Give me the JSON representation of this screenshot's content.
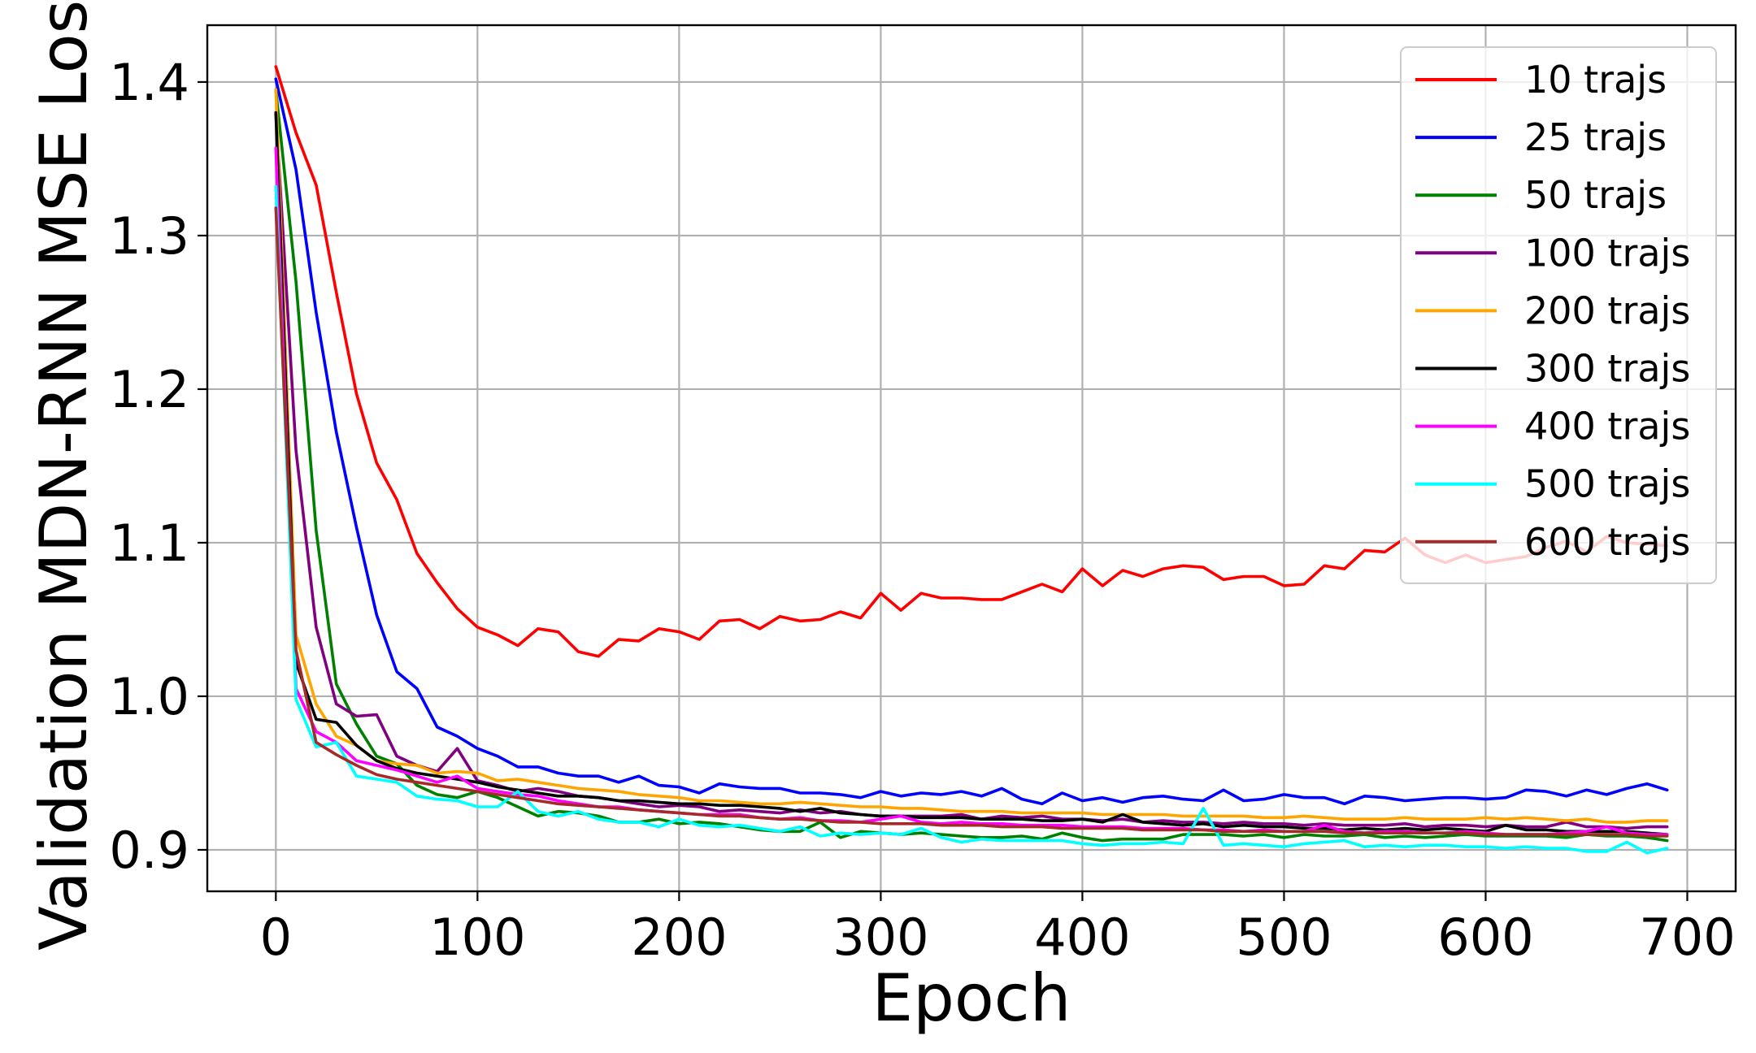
{
  "chart_data": {
    "type": "line",
    "title": "",
    "xlabel": "Epoch",
    "ylabel": "Validation MDN-RNN MSE Loss",
    "xlim": [
      -34,
      724
    ],
    "ylim": [
      0.873,
      1.437
    ],
    "xticks": [
      0,
      100,
      200,
      300,
      400,
      500,
      600,
      700
    ],
    "yticks": [
      0.9,
      1.0,
      1.1,
      1.2,
      1.3,
      1.4
    ],
    "xtick_labels": [
      "0",
      "100",
      "200",
      "300",
      "400",
      "500",
      "600",
      "700"
    ],
    "ytick_labels": [
      "0.9",
      "1.0",
      "1.1",
      "1.2",
      "1.3",
      "1.4"
    ],
    "grid": true,
    "legend_position": "top-right",
    "x": [
      0,
      10,
      20,
      30,
      40,
      50,
      60,
      70,
      80,
      90,
      100,
      110,
      120,
      130,
      140,
      150,
      160,
      170,
      180,
      190,
      200,
      210,
      220,
      230,
      240,
      250,
      260,
      270,
      280,
      290,
      300,
      310,
      320,
      330,
      340,
      350,
      360,
      370,
      380,
      390,
      400,
      410,
      420,
      430,
      440,
      450,
      460,
      470,
      480,
      490,
      500,
      510,
      520,
      530,
      540,
      550,
      560,
      570,
      580,
      590,
      600,
      610,
      620,
      630,
      640,
      650,
      660,
      670,
      680,
      690
    ],
    "series": [
      {
        "name": "10 trajs",
        "color": "#ff0000",
        "values": [
          1.41,
          1.367,
          1.333,
          1.263,
          1.197,
          1.152,
          1.128,
          1.093,
          1.074,
          1.057,
          1.045,
          1.04,
          1.033,
          1.044,
          1.042,
          1.029,
          1.026,
          1.037,
          1.036,
          1.044,
          1.042,
          1.037,
          1.049,
          1.05,
          1.044,
          1.052,
          1.049,
          1.05,
          1.055,
          1.051,
          1.067,
          1.056,
          1.067,
          1.064,
          1.064,
          1.063,
          1.063,
          1.068,
          1.073,
          1.068,
          1.083,
          1.072,
          1.082,
          1.078,
          1.083,
          1.085,
          1.084,
          1.076,
          1.078,
          1.078,
          1.072,
          1.073,
          1.085,
          1.083,
          1.095,
          1.094,
          1.103,
          1.092,
          1.087,
          1.092,
          1.087,
          1.089,
          1.091,
          1.097,
          1.101,
          1.094,
          1.104,
          1.1,
          1.099,
          1.098
        ]
      },
      {
        "name": "25 trajs",
        "color": "#0000ff",
        "values": [
          1.402,
          1.343,
          1.25,
          1.172,
          1.11,
          1.053,
          1.016,
          1.005,
          0.98,
          0.974,
          0.966,
          0.961,
          0.954,
          0.954,
          0.95,
          0.948,
          0.948,
          0.944,
          0.948,
          0.942,
          0.941,
          0.937,
          0.943,
          0.941,
          0.94,
          0.94,
          0.937,
          0.937,
          0.936,
          0.934,
          0.938,
          0.935,
          0.937,
          0.936,
          0.938,
          0.935,
          0.94,
          0.933,
          0.93,
          0.937,
          0.932,
          0.934,
          0.931,
          0.934,
          0.935,
          0.933,
          0.932,
          0.939,
          0.932,
          0.933,
          0.936,
          0.934,
          0.934,
          0.93,
          0.935,
          0.934,
          0.932,
          0.933,
          0.934,
          0.934,
          0.933,
          0.934,
          0.939,
          0.938,
          0.935,
          0.939,
          0.936,
          0.94,
          0.943,
          0.939
        ]
      },
      {
        "name": "50 trajs",
        "color": "#008000",
        "values": [
          1.395,
          1.27,
          1.108,
          1.008,
          0.982,
          0.961,
          0.956,
          0.942,
          0.936,
          0.934,
          0.938,
          0.934,
          0.928,
          0.922,
          0.925,
          0.924,
          0.922,
          0.918,
          0.918,
          0.92,
          0.917,
          0.918,
          0.917,
          0.915,
          0.913,
          0.912,
          0.912,
          0.918,
          0.908,
          0.912,
          0.911,
          0.91,
          0.911,
          0.91,
          0.909,
          0.908,
          0.908,
          0.909,
          0.907,
          0.911,
          0.908,
          0.906,
          0.907,
          0.907,
          0.907,
          0.91,
          0.91,
          0.91,
          0.909,
          0.91,
          0.908,
          0.91,
          0.909,
          0.909,
          0.91,
          0.908,
          0.909,
          0.908,
          0.909,
          0.91,
          0.909,
          0.909,
          0.909,
          0.909,
          0.908,
          0.91,
          0.909,
          0.909,
          0.908,
          0.906
        ]
      },
      {
        "name": "100 trajs",
        "color": "#800080",
        "values": [
          1.38,
          1.16,
          1.045,
          0.995,
          0.987,
          0.988,
          0.961,
          0.955,
          0.951,
          0.966,
          0.945,
          0.942,
          0.938,
          0.94,
          0.938,
          0.935,
          0.934,
          0.932,
          0.93,
          0.928,
          0.929,
          0.928,
          0.925,
          0.926,
          0.925,
          0.924,
          0.926,
          0.924,
          0.925,
          0.923,
          0.922,
          0.922,
          0.922,
          0.922,
          0.923,
          0.92,
          0.922,
          0.921,
          0.922,
          0.92,
          0.92,
          0.919,
          0.92,
          0.918,
          0.919,
          0.918,
          0.918,
          0.917,
          0.918,
          0.917,
          0.917,
          0.916,
          0.917,
          0.916,
          0.916,
          0.916,
          0.917,
          0.915,
          0.916,
          0.916,
          0.915,
          0.916,
          0.915,
          0.915,
          0.918,
          0.915,
          0.915,
          0.914,
          0.915,
          0.915
        ]
      },
      {
        "name": "200 trajs",
        "color": "#ffa500",
        "values": [
          1.395,
          1.04,
          0.995,
          0.974,
          0.968,
          0.958,
          0.956,
          0.955,
          0.95,
          0.951,
          0.95,
          0.945,
          0.946,
          0.944,
          0.942,
          0.94,
          0.939,
          0.938,
          0.936,
          0.935,
          0.934,
          0.932,
          0.932,
          0.931,
          0.93,
          0.93,
          0.931,
          0.93,
          0.929,
          0.928,
          0.928,
          0.927,
          0.927,
          0.926,
          0.925,
          0.925,
          0.925,
          0.924,
          0.924,
          0.924,
          0.924,
          0.923,
          0.923,
          0.923,
          0.923,
          0.922,
          0.922,
          0.922,
          0.922,
          0.921,
          0.921,
          0.922,
          0.921,
          0.92,
          0.92,
          0.92,
          0.921,
          0.92,
          0.92,
          0.92,
          0.921,
          0.92,
          0.921,
          0.92,
          0.919,
          0.92,
          0.918,
          0.918,
          0.919,
          0.919
        ]
      },
      {
        "name": "300 trajs",
        "color": "#000000",
        "values": [
          1.38,
          1.022,
          0.985,
          0.983,
          0.968,
          0.958,
          0.953,
          0.95,
          0.948,
          0.946,
          0.944,
          0.941,
          0.939,
          0.937,
          0.935,
          0.935,
          0.934,
          0.932,
          0.932,
          0.931,
          0.93,
          0.93,
          0.929,
          0.929,
          0.928,
          0.927,
          0.925,
          0.927,
          0.924,
          0.923,
          0.922,
          0.922,
          0.921,
          0.921,
          0.921,
          0.92,
          0.92,
          0.92,
          0.919,
          0.919,
          0.92,
          0.918,
          0.923,
          0.918,
          0.917,
          0.916,
          0.917,
          0.915,
          0.916,
          0.915,
          0.915,
          0.914,
          0.914,
          0.913,
          0.914,
          0.913,
          0.914,
          0.913,
          0.914,
          0.913,
          0.912,
          0.916,
          0.913,
          0.913,
          0.912,
          0.912,
          0.912,
          0.912,
          0.911,
          0.91
        ]
      },
      {
        "name": "400 trajs",
        "color": "#ff00ff",
        "values": [
          1.357,
          1.005,
          0.977,
          0.97,
          0.958,
          0.955,
          0.952,
          0.948,
          0.944,
          0.948,
          0.94,
          0.938,
          0.936,
          0.935,
          0.932,
          0.93,
          0.928,
          0.928,
          0.926,
          0.925,
          0.924,
          0.923,
          0.923,
          0.923,
          0.921,
          0.92,
          0.921,
          0.919,
          0.919,
          0.918,
          0.92,
          0.922,
          0.918,
          0.917,
          0.918,
          0.917,
          0.917,
          0.916,
          0.916,
          0.916,
          0.915,
          0.915,
          0.915,
          0.914,
          0.914,
          0.914,
          0.913,
          0.913,
          0.912,
          0.913,
          0.912,
          0.912,
          0.916,
          0.912,
          0.911,
          0.912,
          0.912,
          0.911,
          0.911,
          0.912,
          0.911,
          0.91,
          0.91,
          0.91,
          0.911,
          0.912,
          0.915,
          0.911,
          0.91,
          0.91
        ]
      },
      {
        "name": "500 trajs",
        "color": "#00ffff",
        "values": [
          1.332,
          0.998,
          0.967,
          0.97,
          0.948,
          0.946,
          0.944,
          0.935,
          0.933,
          0.932,
          0.928,
          0.928,
          0.938,
          0.925,
          0.922,
          0.925,
          0.92,
          0.918,
          0.918,
          0.915,
          0.92,
          0.916,
          0.915,
          0.916,
          0.914,
          0.912,
          0.915,
          0.909,
          0.911,
          0.91,
          0.911,
          0.91,
          0.914,
          0.908,
          0.905,
          0.907,
          0.906,
          0.906,
          0.906,
          0.906,
          0.904,
          0.903,
          0.904,
          0.904,
          0.905,
          0.904,
          0.927,
          0.903,
          0.904,
          0.903,
          0.902,
          0.904,
          0.905,
          0.906,
          0.902,
          0.903,
          0.902,
          0.903,
          0.903,
          0.902,
          0.902,
          0.901,
          0.902,
          0.901,
          0.901,
          0.899,
          0.899,
          0.905,
          0.898,
          0.901
        ]
      },
      {
        "name": "600 trajs",
        "color": "#a52a2a",
        "values": [
          1.318,
          1.03,
          0.97,
          0.962,
          0.955,
          0.949,
          0.946,
          0.944,
          0.942,
          0.94,
          0.938,
          0.936,
          0.934,
          0.932,
          0.93,
          0.929,
          0.928,
          0.927,
          0.926,
          0.925,
          0.924,
          0.923,
          0.922,
          0.922,
          0.921,
          0.92,
          0.92,
          0.919,
          0.918,
          0.918,
          0.917,
          0.917,
          0.917,
          0.916,
          0.916,
          0.916,
          0.915,
          0.915,
          0.915,
          0.914,
          0.914,
          0.914,
          0.914,
          0.913,
          0.913,
          0.913,
          0.913,
          0.912,
          0.912,
          0.912,
          0.912,
          0.912,
          0.912,
          0.911,
          0.911,
          0.911,
          0.911,
          0.911,
          0.911,
          0.911,
          0.91,
          0.91,
          0.91,
          0.91,
          0.91,
          0.91,
          0.91,
          0.91,
          0.909,
          0.909
        ]
      }
    ]
  }
}
